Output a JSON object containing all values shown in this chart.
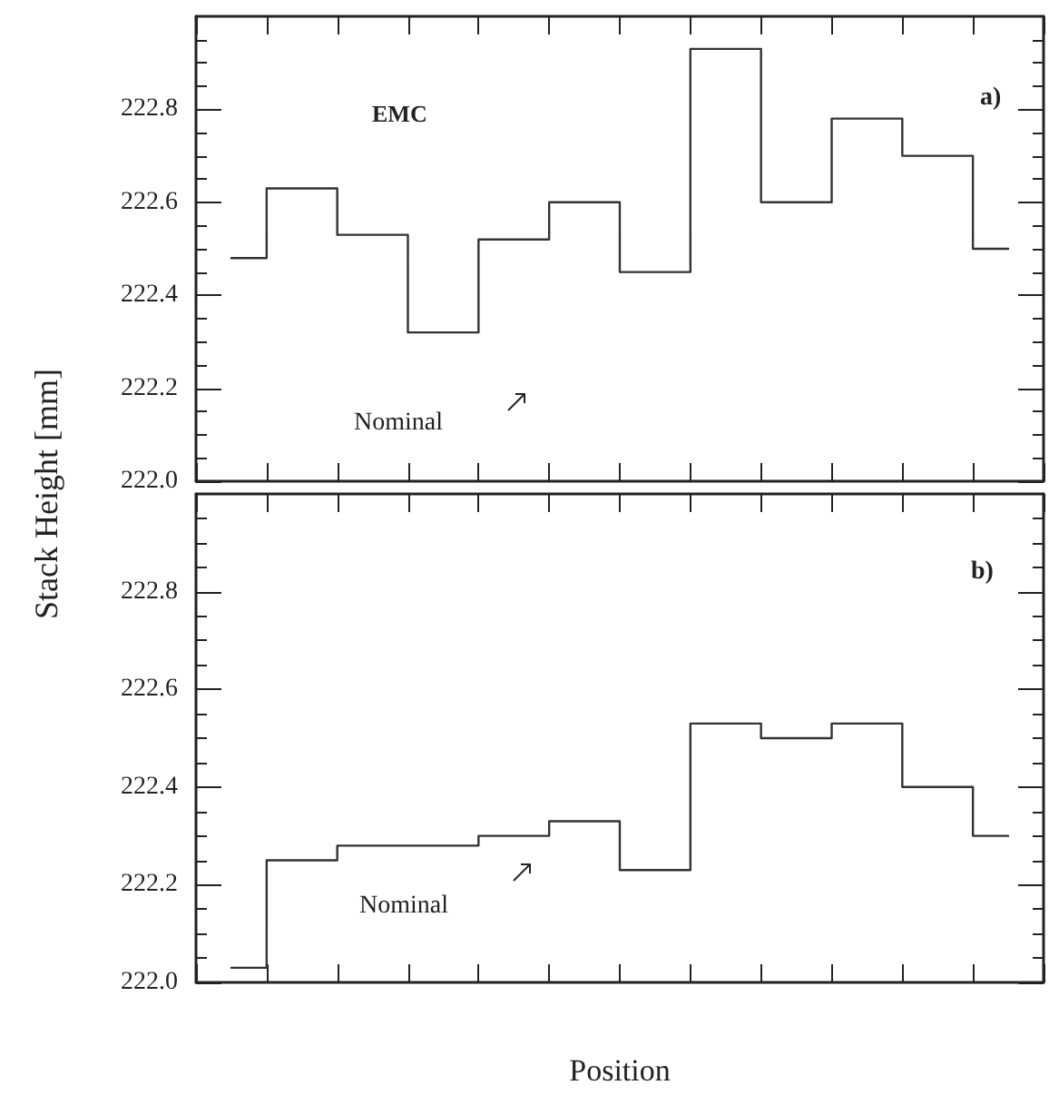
{
  "chart_data": [
    {
      "type": "step",
      "ylabel": "Stack Height [mm]",
      "annotations": [
        "EMC",
        "a)",
        "Nominal"
      ],
      "categories": [
        null,
        null,
        null,
        null,
        null,
        null,
        null,
        null,
        null,
        null,
        null,
        null
      ],
      "series": [
        {
          "color": "#333333",
          "values": [
            222.48,
            222.63,
            222.53,
            222.32,
            222.52,
            222.6,
            222.45,
            222.93,
            222.6,
            222.78,
            222.7,
            222.5
          ]
        }
      ],
      "ylim": [
        222.0,
        223.0
      ],
      "yticks": [
        {
          "value": 222.0,
          "label": "222.0"
        },
        222.2,
        222.4,
        222.6,
        222.8
      ],
      "tick_labels": "y",
      "grid": false,
      "marker": "none",
      "line_style": "solid"
    },
    {
      "type": "step",
      "xlabel": "Position",
      "annotations": [
        "b)",
        "Nominal"
      ],
      "categories": [
        null,
        null,
        null,
        null,
        null,
        null,
        null,
        null,
        null,
        null,
        null,
        null
      ],
      "series": [
        {
          "color": "#333333",
          "values": [
            222.03,
            222.25,
            222.28,
            222.28,
            222.3,
            222.33,
            222.23,
            222.53,
            222.5,
            222.53,
            222.4,
            222.3
          ]
        }
      ],
      "ylim": [
        222.0,
        223.0
      ],
      "yticks": [
        {
          "value": 222.0,
          "label": "222.0"
        },
        222.2,
        222.4,
        222.6,
        222.8
      ],
      "tick_labels": "y",
      "grid": false,
      "marker": "none",
      "line_style": "solid"
    }
  ]
}
